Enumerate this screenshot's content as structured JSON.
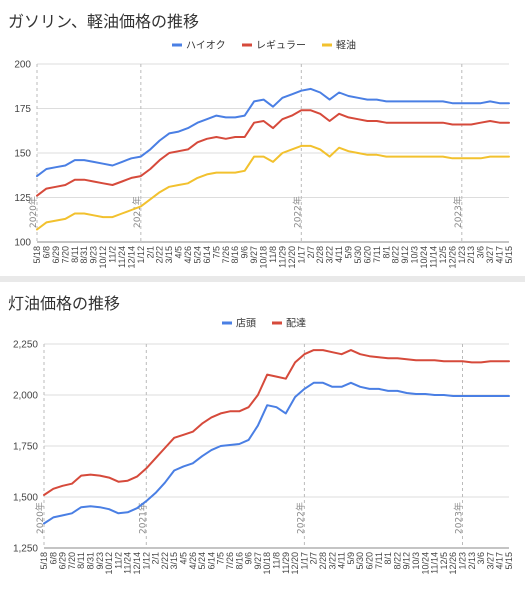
{
  "chart_data": [
    {
      "type": "line",
      "title": "ガソリン、軽油価格の推移",
      "legend_position": "top-center",
      "grid": true,
      "ylim": [
        100,
        200
      ],
      "yticks": [
        100,
        125,
        150,
        175,
        200
      ],
      "x_tick_labels": [
        "5/18",
        "6/8",
        "6/29",
        "7/20",
        "8/11",
        "8/31",
        "9/23",
        "10/12",
        "11/2",
        "11/24",
        "12/14",
        "1/12",
        "2/1",
        "2/22",
        "3/15",
        "4/5",
        "4/26",
        "5/24",
        "6/14",
        "7/5",
        "7/26",
        "8/16",
        "9/6",
        "9/27",
        "10/18",
        "11/8",
        "11/29",
        "12/20",
        "1/17",
        "2/7",
        "2/28",
        "3/22",
        "4/11",
        "5/9",
        "5/30",
        "6/20",
        "7/11",
        "8/1",
        "8/22",
        "9/12",
        "10/3",
        "10/24",
        "11/14",
        "12/5",
        "12/26",
        "1/23",
        "2/13",
        "3/6",
        "3/27",
        "4/17",
        "5/15"
      ],
      "year_markers": [
        {
          "label": "2020年",
          "at": "5/18"
        },
        {
          "label": "2021年",
          "at": "1/12"
        },
        {
          "label": "2022年",
          "at": "1/17"
        },
        {
          "label": "2023年",
          "at": "1/23"
        }
      ],
      "series": [
        {
          "name": "ハイオク",
          "color": "#4a7fe4",
          "values": [
            137,
            141,
            142,
            143,
            146,
            146,
            145,
            144,
            143,
            145,
            147,
            148,
            152,
            157,
            161,
            162,
            164,
            167,
            169,
            171,
            170,
            170,
            171,
            179,
            180,
            176,
            181,
            183,
            185,
            186,
            184,
            180,
            184,
            182,
            181,
            180,
            180,
            179,
            179,
            179,
            179,
            179,
            179,
            179,
            178,
            178,
            178,
            178,
            179,
            178,
            178
          ]
        },
        {
          "name": "レギュラー",
          "color": "#d64a3b",
          "values": [
            126,
            130,
            131,
            132,
            135,
            135,
            134,
            133,
            132,
            134,
            136,
            137,
            141,
            146,
            150,
            151,
            152,
            156,
            158,
            159,
            158,
            159,
            159,
            167,
            168,
            164,
            169,
            171,
            174,
            174,
            172,
            168,
            172,
            170,
            169,
            168,
            168,
            167,
            167,
            167,
            167,
            167,
            167,
            167,
            166,
            166,
            166,
            167,
            168,
            167,
            167
          ]
        },
        {
          "name": "軽油",
          "color": "#f2c12e",
          "values": [
            107,
            111,
            112,
            113,
            116,
            116,
            115,
            114,
            114,
            116,
            118,
            120,
            124,
            128,
            131,
            132,
            133,
            136,
            138,
            139,
            139,
            139,
            140,
            148,
            148,
            145,
            150,
            152,
            154,
            154,
            152,
            148,
            153,
            151,
            150,
            149,
            149,
            148,
            148,
            148,
            148,
            148,
            148,
            148,
            147,
            147,
            147,
            147,
            148,
            148,
            148
          ]
        }
      ]
    },
    {
      "type": "line",
      "title": "灯油価格の推移",
      "legend_position": "top-center",
      "grid": true,
      "ylim": [
        1250,
        2250
      ],
      "yticks": [
        1250,
        1500,
        1750,
        2000,
        2250
      ],
      "y_tick_labels": [
        "1,250",
        "1,500",
        "1,750",
        "2,000",
        "2,250"
      ],
      "x_tick_labels": [
        "5/18",
        "6/8",
        "6/29",
        "7/20",
        "8/11",
        "8/31",
        "9/23",
        "10/12",
        "11/2",
        "11/24",
        "12/14",
        "1/12",
        "2/1",
        "2/22",
        "3/15",
        "4/5",
        "4/26",
        "5/24",
        "6/14",
        "7/5",
        "7/26",
        "8/16",
        "9/6",
        "9/27",
        "10/18",
        "11/8",
        "11/29",
        "12/20",
        "1/17",
        "2/7",
        "2/28",
        "3/22",
        "4/11",
        "5/9",
        "5/30",
        "6/20",
        "7/11",
        "8/1",
        "8/22",
        "9/12",
        "10/3",
        "10/24",
        "11/14",
        "12/5",
        "12/26",
        "1/23",
        "2/13",
        "3/6",
        "3/27",
        "4/17",
        "5/15"
      ],
      "year_markers": [
        {
          "label": "2020年",
          "at": "5/18"
        },
        {
          "label": "2021年",
          "at": "1/12"
        },
        {
          "label": "2022年",
          "at": "1/17"
        },
        {
          "label": "2023年",
          "at": "1/23"
        }
      ],
      "series": [
        {
          "name": "店頭",
          "color": "#4a7fe4",
          "values": [
            1370,
            1400,
            1410,
            1420,
            1450,
            1455,
            1450,
            1440,
            1420,
            1425,
            1445,
            1480,
            1520,
            1570,
            1630,
            1650,
            1665,
            1700,
            1730,
            1750,
            1755,
            1760,
            1780,
            1850,
            1950,
            1940,
            1910,
            1990,
            2030,
            2060,
            2060,
            2040,
            2040,
            2060,
            2040,
            2030,
            2030,
            2020,
            2020,
            2010,
            2005,
            2005,
            2000,
            2000,
            1995,
            1995,
            1995,
            1995,
            1995,
            1995,
            1995
          ]
        },
        {
          "name": "配達",
          "color": "#d64a3b",
          "values": [
            1510,
            1540,
            1555,
            1565,
            1605,
            1610,
            1605,
            1595,
            1575,
            1580,
            1600,
            1640,
            1690,
            1740,
            1790,
            1805,
            1820,
            1860,
            1890,
            1910,
            1920,
            1920,
            1940,
            2000,
            2100,
            2090,
            2080,
            2160,
            2200,
            2220,
            2220,
            2210,
            2200,
            2220,
            2200,
            2190,
            2185,
            2180,
            2180,
            2175,
            2170,
            2170,
            2170,
            2165,
            2165,
            2165,
            2160,
            2160,
            2165,
            2165,
            2165
          ]
        }
      ]
    }
  ]
}
